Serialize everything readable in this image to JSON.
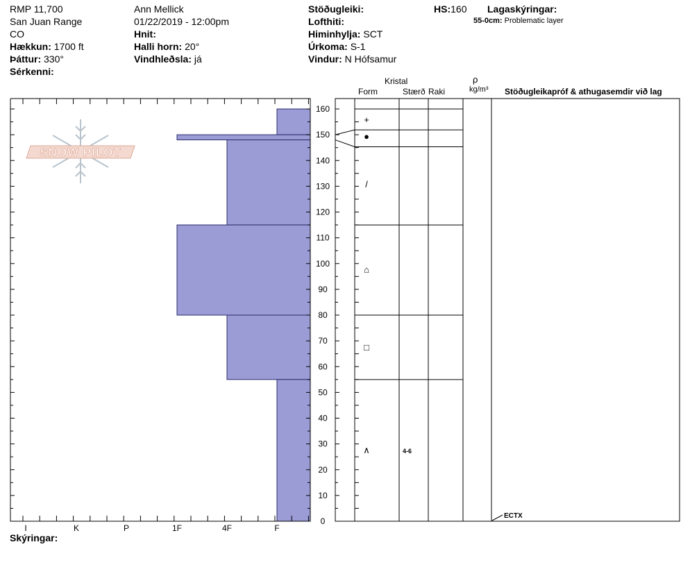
{
  "header": {
    "location_code": "RMP 11,700",
    "range": "San Juan Range",
    "state": "CO",
    "elevation_label": "Hækkun:",
    "elevation_value": "1700 ft",
    "aspect_label": "Þáttur:",
    "aspect_value": "330°",
    "features_label": "Sérkenni:",
    "observer": "Ann Mellick",
    "datetime": "01/22/2019 - 12:00pm",
    "coords_label": "Hnit:",
    "slope_label": "Halli horn:",
    "slope_value": "20°",
    "wind_loading_label": "Vindhleðsla:",
    "wind_loading_value": "já",
    "stability_label": "Stöðugleiki:",
    "air_temp_label": "Lofthiti:",
    "sky_label": "Himinhylja:",
    "sky_value": "SCT",
    "precip_label": "Úrkoma:",
    "precip_value": "S-1",
    "wind_label": "Vindur:",
    "wind_value": "N Hófsamur",
    "hs_label": "HS:",
    "hs_value": "160",
    "layer_notes_label": "Lagaskýringar:",
    "layer_note_depth": "55-0cm:",
    "layer_note_text": "Problematic layer"
  },
  "logo": {
    "text": "SNOW PILOT",
    "icon": "snowflake-icon"
  },
  "columns": {
    "crystal": "Kristal",
    "form": "Form",
    "size": "Stærð",
    "moisture": "Raki",
    "rho": "ρ",
    "density_unit": "kg/m³",
    "tests": "Stöðugleikapróf & athugasemdir við lag"
  },
  "footer": {
    "comments_label": "Skýringar:"
  },
  "test_annotation": {
    "label": "ECTX",
    "depth": 0
  },
  "colors": {
    "hardness_fill": "#9b9bd6",
    "hardness_stroke": "#2b2b6b"
  },
  "chart_data": {
    "type": "bar",
    "orientation": "horizontal",
    "hardness_ticks": [
      "I",
      "K",
      "P",
      "1F",
      "4F",
      "F"
    ],
    "ylim": [
      0,
      160
    ],
    "y_ticks": [
      0,
      10,
      20,
      30,
      40,
      50,
      60,
      70,
      80,
      90,
      100,
      110,
      120,
      130,
      140,
      150,
      160
    ],
    "layers": [
      {
        "top": 160,
        "bottom": 150,
        "hardness": "F",
        "form": "+",
        "size": ""
      },
      {
        "top": 150,
        "bottom": 148,
        "hardness": "1F",
        "form": "●",
        "size": ""
      },
      {
        "top": 148,
        "bottom": 115,
        "hardness": "4F",
        "form": "/",
        "size": ""
      },
      {
        "top": 115,
        "bottom": 80,
        "hardness": "1F",
        "form": "⌂",
        "size": ""
      },
      {
        "top": 80,
        "bottom": 55,
        "hardness": "4F",
        "form": "□",
        "size": ""
      },
      {
        "top": 55,
        "bottom": 0,
        "hardness": "F",
        "form": "∧",
        "size": "4-6"
      }
    ]
  }
}
